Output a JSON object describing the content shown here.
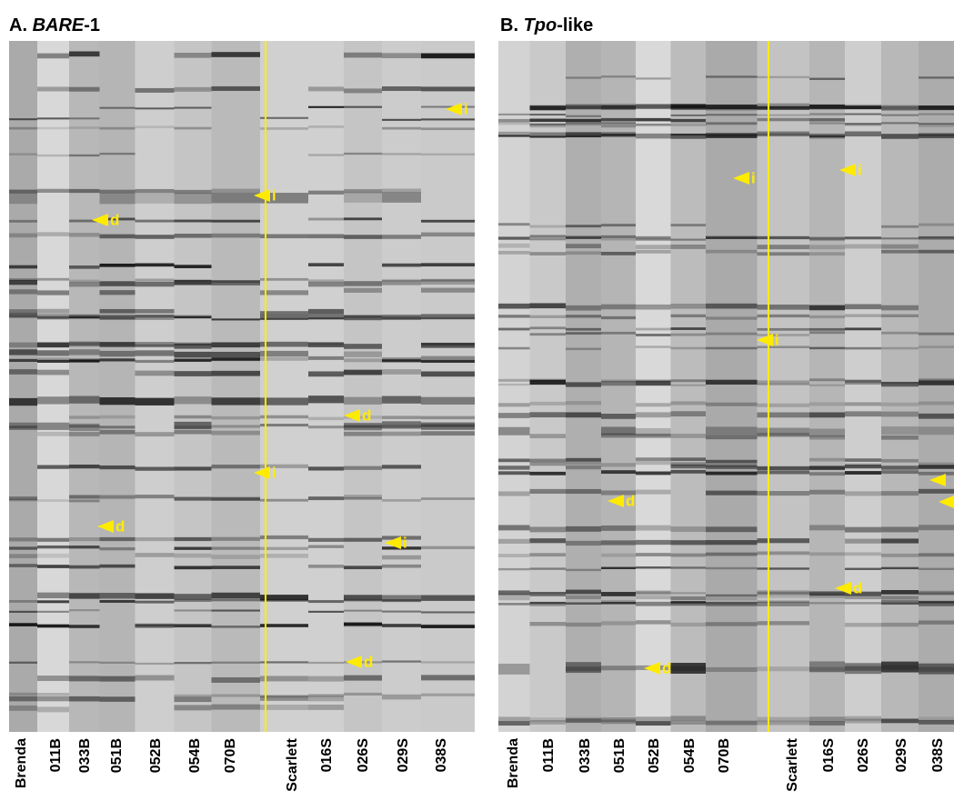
{
  "panels": [
    {
      "title": {
        "prefix": "A. ",
        "italic": "BARE",
        "suffix": "-1"
      },
      "lanes": [
        "Brenda",
        "011B",
        "033B",
        "051B",
        "052B",
        "054B",
        "070B",
        "Scarlett",
        "016S",
        "026S",
        "029S",
        "038S"
      ],
      "markers": [
        "i",
        "i",
        "d",
        "d",
        "i",
        "d",
        "i",
        "d"
      ]
    },
    {
      "title": {
        "prefix": "B. ",
        "italic": "Tpo",
        "suffix": "-like"
      },
      "lanes": [
        "Brenda",
        "011B",
        "033B",
        "051B",
        "052B",
        "054B",
        "070B",
        "Scarlett",
        "016S",
        "026S",
        "029S",
        "038S"
      ],
      "markers": [
        "i",
        "i",
        "i",
        "d",
        "d",
        "d"
      ]
    }
  ]
}
